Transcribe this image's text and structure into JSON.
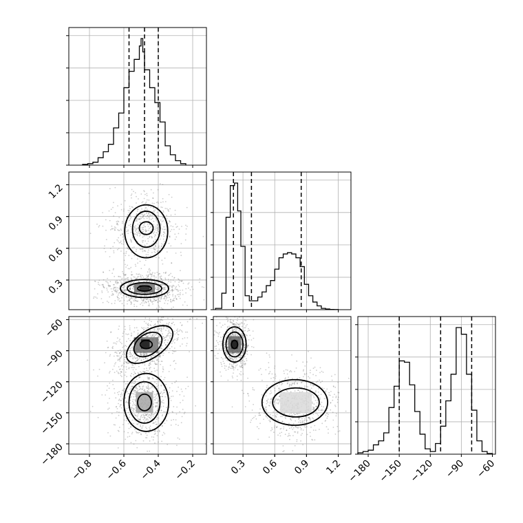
{
  "chart_data": {
    "type": "corner",
    "parameters": [
      {
        "name": "",
        "range": [
          -0.92,
          -0.12
        ],
        "ticks": [
          -0.8,
          -0.6,
          -0.4,
          -0.2
        ],
        "tick_labels": [
          "−0.8",
          "−0.6",
          "−0.4",
          "−0.2"
        ]
      },
      {
        "name": "",
        "range": [
          0.02,
          1.32
        ],
        "ticks": [
          0.3,
          0.6,
          0.9,
          1.2
        ],
        "tick_labels": [
          "0.3",
          "0.6",
          "0.9",
          "1.2"
        ]
      },
      {
        "name": "",
        "range": [
          -190,
          -57
        ],
        "ticks": [
          -180,
          -150,
          -120,
          -90,
          -60
        ],
        "tick_labels": [
          "−180",
          "−150",
          "−120",
          "−90",
          "−60"
        ]
      }
    ],
    "grid": true,
    "histograms": [
      {
        "param": 0,
        "bin_edges": [
          -0.84,
          -0.81,
          -0.78,
          -0.75,
          -0.72,
          -0.69,
          -0.66,
          -0.63,
          -0.6,
          -0.57,
          -0.54,
          -0.51,
          -0.5,
          -0.49,
          -0.48,
          -0.45,
          -0.42,
          -0.39,
          -0.36,
          -0.33,
          -0.3,
          -0.27,
          -0.24
        ],
        "heights": [
          0.005,
          0.01,
          0.02,
          0.05,
          0.09,
          0.14,
          0.25,
          0.35,
          0.52,
          0.63,
          0.71,
          0.8,
          0.85,
          0.76,
          0.64,
          0.52,
          0.42,
          0.29,
          0.13,
          0.07,
          0.03,
          0.01
        ],
        "quantiles": [
          -0.57,
          -0.48,
          -0.4
        ]
      },
      {
        "param": 1,
        "bin_edges": [
          0.04,
          0.1,
          0.14,
          0.18,
          0.22,
          0.25,
          0.28,
          0.32,
          0.36,
          0.4,
          0.44,
          0.48,
          0.52,
          0.56,
          0.6,
          0.64,
          0.68,
          0.72,
          0.76,
          0.8,
          0.84,
          0.88,
          0.92,
          0.96,
          1.0,
          1.04,
          1.08,
          1.12,
          1.16,
          1.2
        ],
        "heights": [
          0.01,
          0.13,
          0.73,
          0.98,
          1.0,
          0.78,
          0.5,
          0.11,
          0.07,
          0.07,
          0.1,
          0.14,
          0.19,
          0.23,
          0.32,
          0.41,
          0.44,
          0.45,
          0.44,
          0.41,
          0.34,
          0.2,
          0.11,
          0.06,
          0.03,
          0.01,
          0.005,
          0.002,
          0.001
        ],
        "quantiles": [
          0.21,
          0.38,
          0.85
        ]
      },
      {
        "param": 2,
        "bin_edges": [
          -190,
          -185,
          -180,
          -175,
          -170,
          -165,
          -160,
          -155,
          -150,
          -145,
          -140,
          -135,
          -130,
          -125,
          -120,
          -115,
          -110,
          -105,
          -100,
          -95,
          -90,
          -85,
          -80,
          -75,
          -70,
          -65,
          -60
        ],
        "heights": [
          0.01,
          0.02,
          0.03,
          0.07,
          0.1,
          0.16,
          0.35,
          0.51,
          0.7,
          0.69,
          0.52,
          0.32,
          0.15,
          0.04,
          0.02,
          0.08,
          0.21,
          0.4,
          0.6,
          0.95,
          0.9,
          0.6,
          0.33,
          0.1,
          0.02,
          0.005
        ],
        "quantiles": [
          -150,
          -110,
          -80
        ]
      }
    ],
    "pairs": [
      {
        "x_param": 0,
        "y_param": 1,
        "modes": [
          {
            "mean": [
              -0.48,
              0.22
            ],
            "sigma": [
              0.1,
              0.07
            ],
            "angle": 0,
            "weight": 0.6
          },
          {
            "mean": [
              -0.47,
              0.78
            ],
            "sigma": [
              0.09,
              0.14
            ],
            "angle": 0,
            "weight": 0.4
          }
        ],
        "contours": [
          {
            "center": [
              -0.48,
              0.22
            ],
            "radii": [
              0.04,
              0.025
            ],
            "angle": 0
          },
          {
            "center": [
              -0.48,
              0.22
            ],
            "radii": [
              0.1,
              0.055
            ],
            "angle": 0
          },
          {
            "center": [
              -0.48,
              0.22
            ],
            "radii": [
              0.14,
              0.085
            ],
            "angle": 0
          },
          {
            "center": [
              -0.47,
              0.79
            ],
            "radii": [
              0.04,
              0.06
            ],
            "angle": 0
          },
          {
            "center": [
              -0.47,
              0.78
            ],
            "radii": [
              0.08,
              0.17
            ],
            "angle": 0
          },
          {
            "center": [
              -0.47,
              0.76
            ],
            "radii": [
              0.125,
              0.25
            ],
            "angle": 0
          }
        ],
        "density_cells": [
          {
            "x": [
              -0.54,
              -0.42
            ],
            "y": [
              0.18,
              0.27
            ],
            "level": 0.55
          },
          {
            "x": [
              -0.51,
              -0.45
            ],
            "y": [
              0.2,
              0.25
            ],
            "level": 0.85
          }
        ]
      },
      {
        "x_param": 0,
        "y_param": 2,
        "modes": [
          {
            "mean": [
              -0.46,
              -84
            ],
            "sigma": [
              0.1,
              10
            ],
            "angle": 35,
            "weight": 0.5
          },
          {
            "mean": [
              -0.48,
              -140
            ],
            "sigma": [
              0.085,
              16
            ],
            "angle": 0,
            "weight": 0.5
          }
        ],
        "contours": [
          {
            "center": [
              -0.47,
              -84
            ],
            "radii": [
              0.035,
              4
            ],
            "angle": 0
          },
          {
            "center": [
              -0.46,
              -84
            ],
            "radii": [
              0.09,
              10
            ],
            "angle": 35
          },
          {
            "center": [
              -0.45,
              -84
            ],
            "radii": [
              0.155,
              13
            ],
            "angle": 35
          },
          {
            "center": [
              -0.48,
              -140
            ],
            "radii": [
              0.04,
              8
            ],
            "angle": 0
          },
          {
            "center": [
              -0.48,
              -140
            ],
            "radii": [
              0.09,
              20
            ],
            "angle": 0
          },
          {
            "center": [
              -0.47,
              -140
            ],
            "radii": [
              0.13,
              28
            ],
            "angle": 0
          }
        ],
        "density_cells": [
          {
            "x": [
              -0.54,
              -0.4
            ],
            "y": [
              -92,
              -77
            ],
            "level": 0.55
          },
          {
            "x": [
              -0.5,
              -0.45
            ],
            "y": [
              -88,
              -79
            ],
            "level": 0.9
          },
          {
            "x": [
              -0.53,
              -0.43
            ],
            "y": [
              -150,
              -130
            ],
            "level": 0.35
          }
        ]
      },
      {
        "x_param": 1,
        "y_param": 2,
        "modes": [
          {
            "mean": [
              0.22,
              -84
            ],
            "sigma": [
              0.06,
              10
            ],
            "angle": 0,
            "weight": 0.5
          },
          {
            "mean": [
              0.8,
              -140
            ],
            "sigma": [
              0.17,
              15
            ],
            "angle": 0,
            "weight": 0.5
          }
        ],
        "contours": [
          {
            "center": [
              0.22,
              -84
            ],
            "radii": [
              0.03,
              4
            ],
            "angle": 0
          },
          {
            "center": [
              0.22,
              -84
            ],
            "radii": [
              0.08,
              12
            ],
            "angle": 0
          },
          {
            "center": [
              0.22,
              -84
            ],
            "radii": [
              0.11,
              17
            ],
            "angle": 0
          },
          {
            "center": [
              0.8,
              -140
            ],
            "radii": [
              0.22,
              14
            ],
            "angle": 0
          },
          {
            "center": [
              0.79,
              -140
            ],
            "radii": [
              0.31,
              22
            ],
            "angle": 0
          }
        ],
        "density_cells": [
          {
            "x": [
              0.16,
              0.28
            ],
            "y": [
              -92,
              -76
            ],
            "level": 0.6
          },
          {
            "x": [
              0.19,
              0.25
            ],
            "y": [
              -88,
              -80
            ],
            "level": 0.9
          },
          {
            "x": [
              0.65,
              0.95
            ],
            "y": [
              -150,
              -130
            ],
            "level": 0.15
          }
        ]
      }
    ]
  }
}
